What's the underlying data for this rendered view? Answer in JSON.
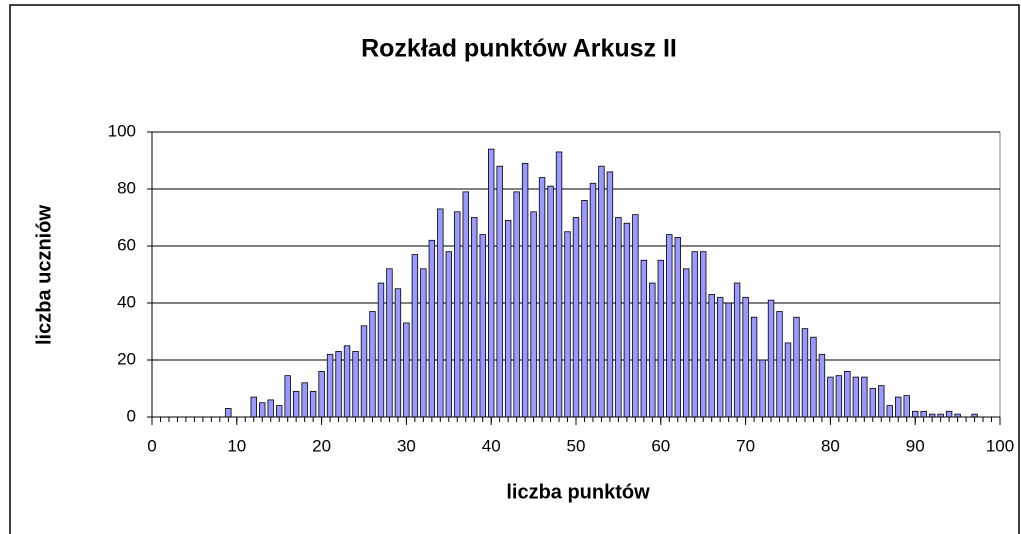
{
  "chart_data": {
    "type": "bar",
    "title": "Rozkład punktów Arkusz II",
    "xlabel": "liczba punktów",
    "ylabel": "liczba uczniów",
    "x": [
      0,
      1,
      2,
      3,
      4,
      5,
      6,
      7,
      8,
      9,
      10,
      11,
      12,
      13,
      14,
      15,
      16,
      17,
      18,
      19,
      20,
      21,
      22,
      23,
      24,
      25,
      26,
      27,
      28,
      29,
      30,
      31,
      32,
      33,
      34,
      35,
      36,
      37,
      38,
      39,
      40,
      41,
      42,
      43,
      44,
      45,
      46,
      47,
      48,
      49,
      50,
      51,
      52,
      53,
      54,
      55,
      56,
      57,
      58,
      59,
      60,
      61,
      62,
      63,
      64,
      65,
      66,
      67,
      68,
      69,
      70,
      71,
      72,
      73,
      74,
      75,
      76,
      77,
      78,
      79,
      80,
      81,
      82,
      83,
      84,
      85,
      86,
      87,
      88,
      89,
      90,
      91,
      92,
      93,
      94,
      95,
      96,
      97,
      98,
      99,
      100
    ],
    "values": [
      0,
      0,
      0,
      0,
      0,
      0,
      0,
      0,
      0,
      3,
      0,
      0,
      7,
      5,
      6,
      4,
      14.5,
      9,
      12,
      9,
      16,
      22,
      23,
      25,
      23,
      32,
      37,
      47,
      52,
      45,
      33,
      57,
      52,
      62,
      73,
      58,
      72,
      79,
      70,
      64,
      94,
      88,
      69,
      79,
      89,
      72,
      84,
      81,
      93,
      65,
      70,
      76,
      82,
      88,
      86,
      70,
      68,
      71,
      55,
      47,
      55,
      64,
      63,
      52,
      58,
      58,
      43,
      42,
      40,
      47,
      42,
      35,
      20,
      41,
      37,
      26,
      35,
      31,
      28,
      22,
      14,
      14.5,
      16,
      14,
      14,
      10,
      11,
      4,
      7,
      7.5,
      2,
      2,
      1,
      1,
      2,
      1,
      0,
      1,
      0,
      0,
      0
    ],
    "color": "#9999ff",
    "xlim": [
      0,
      100
    ],
    "xticks": [
      0,
      10,
      20,
      30,
      40,
      50,
      60,
      70,
      80,
      90,
      100
    ],
    "ylim": [
      0,
      100
    ],
    "yticks": [
      0,
      20,
      40,
      60,
      80,
      100
    ],
    "grid": true
  }
}
